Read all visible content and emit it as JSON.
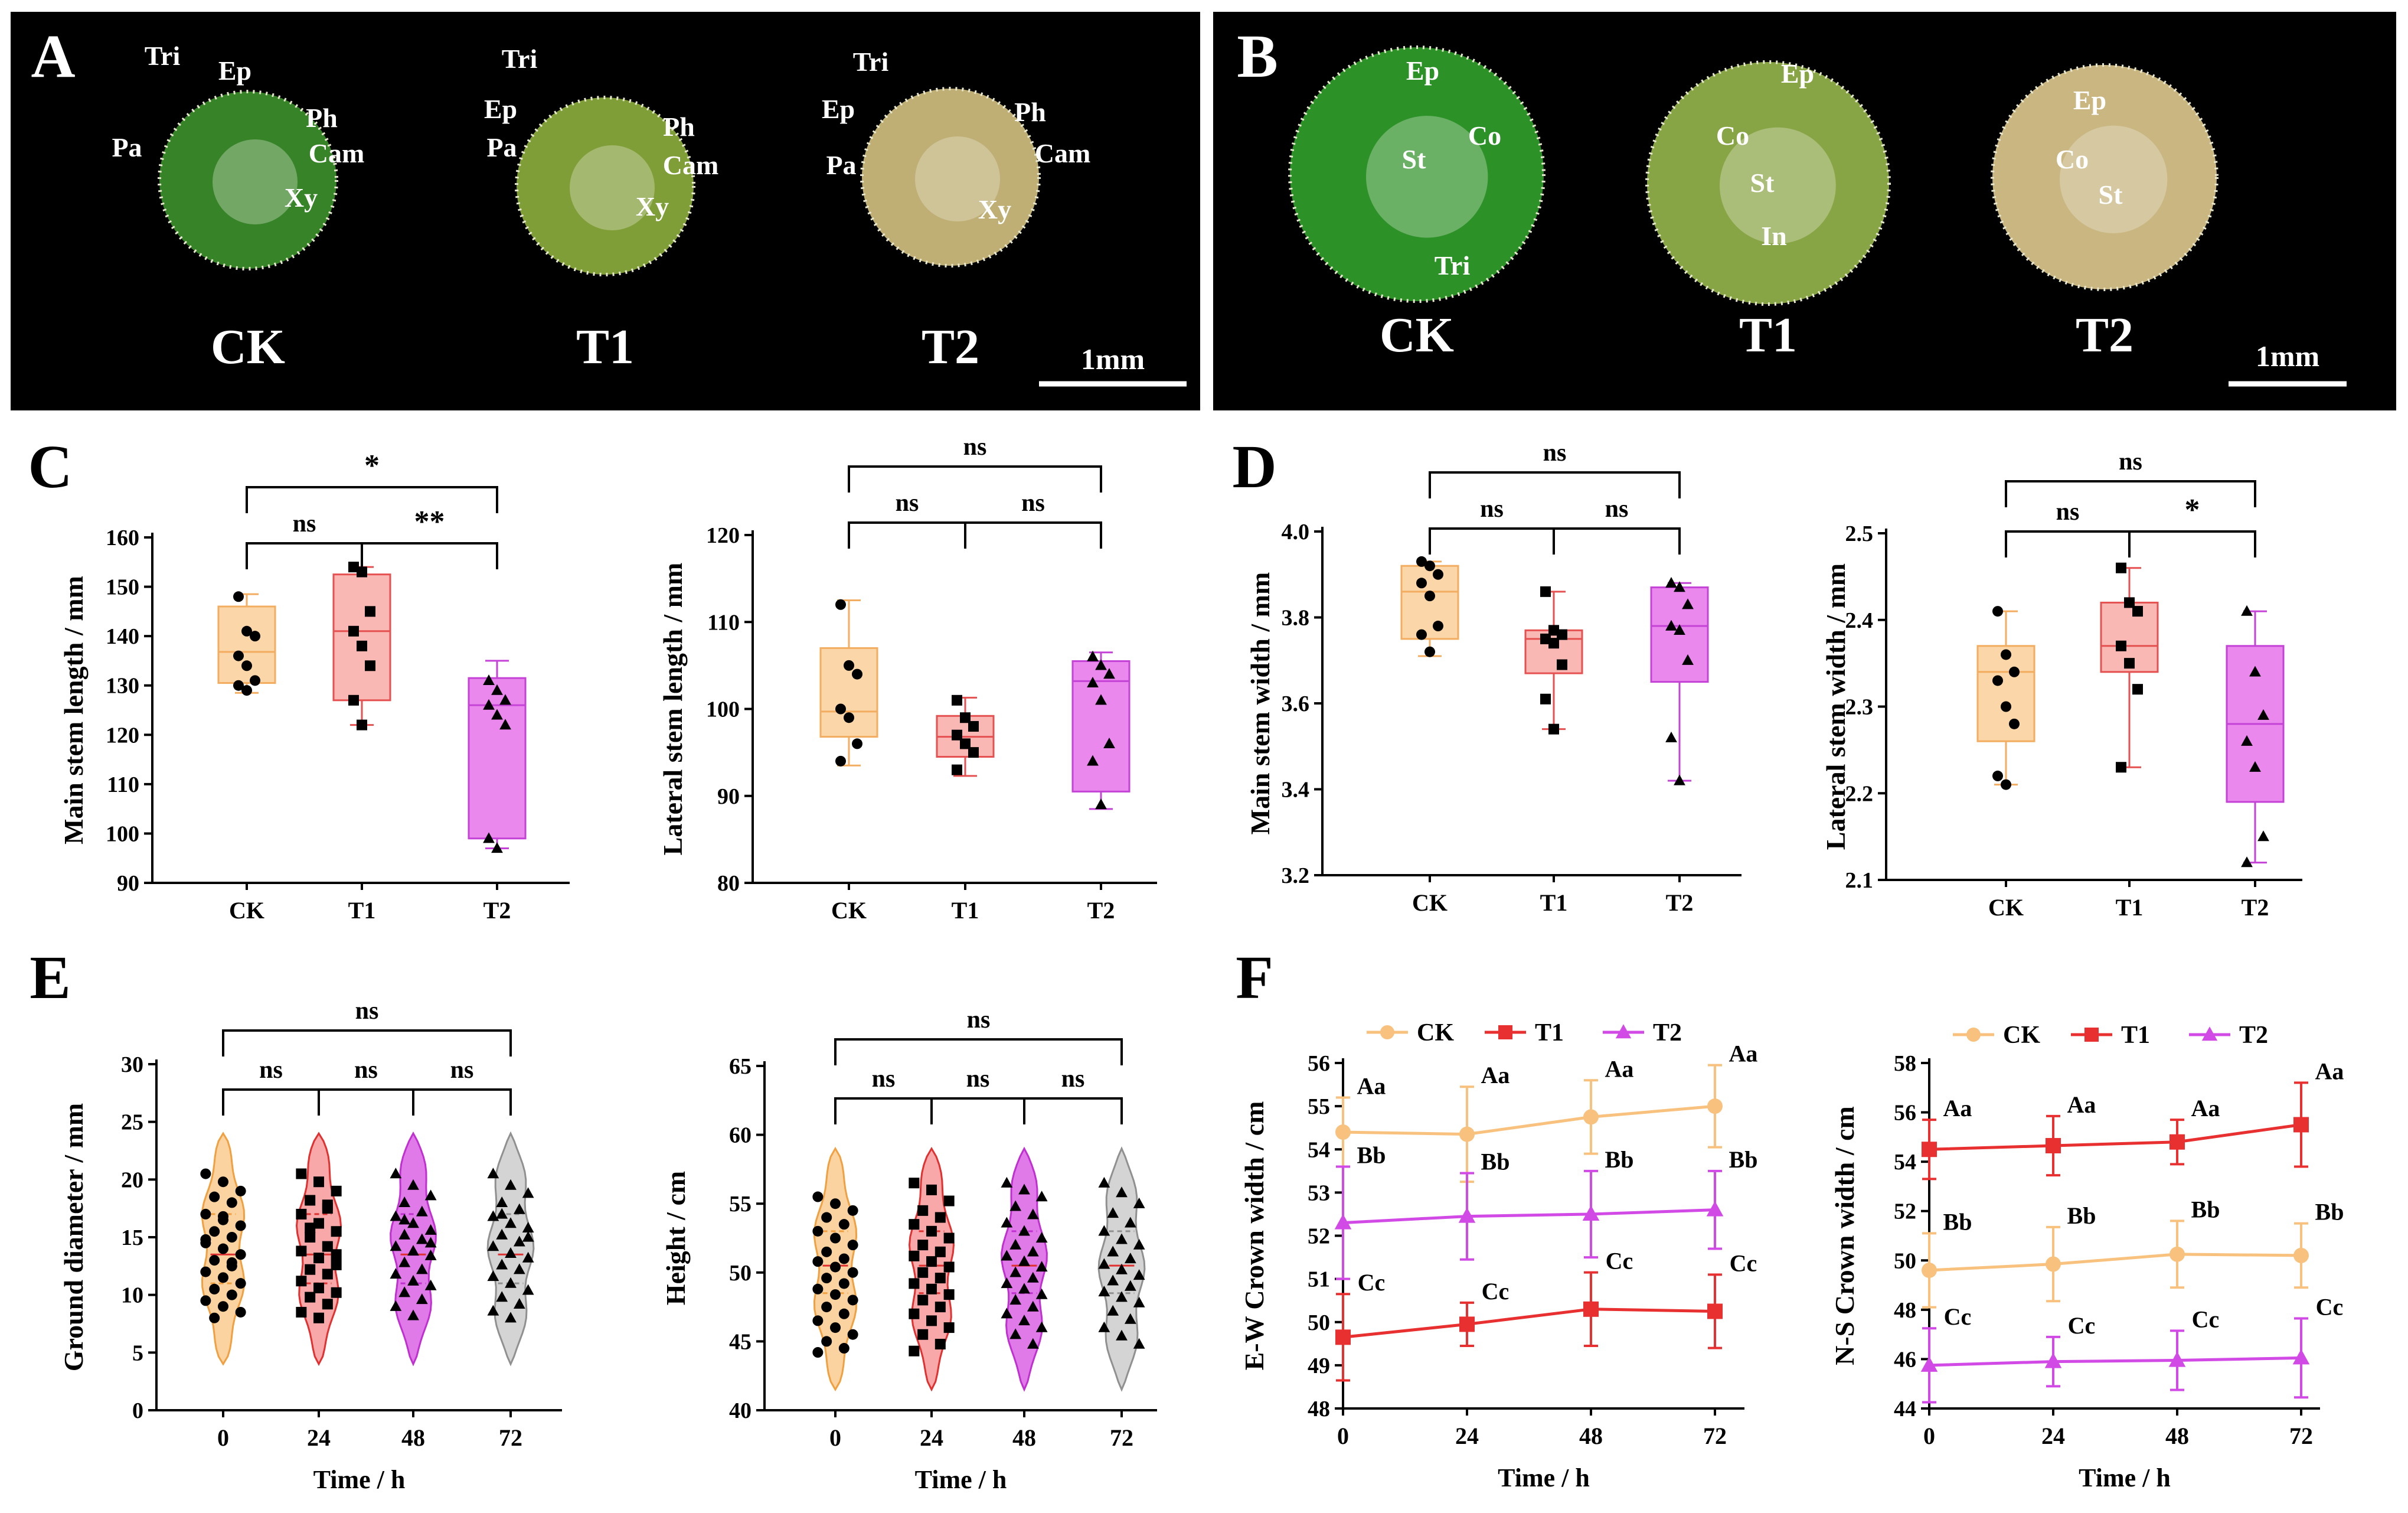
{
  "photo_panels": [
    {
      "letter": "A",
      "scale_label": "1mm",
      "samples": [
        {
          "label": "CK",
          "color": "#3a8a2a",
          "annotations": [
            "Tri",
            "Ep",
            "Ph",
            "Pa",
            "Cam",
            "Xy"
          ]
        },
        {
          "label": "T1",
          "color": "#86a63a",
          "annotations": [
            "Tri",
            "Ep",
            "Ph",
            "Pa",
            "Cam",
            "Xy"
          ]
        },
        {
          "label": "T2",
          "color": "#c9b87a",
          "annotations": [
            "Tri",
            "Ep",
            "Ph",
            "Pa",
            "Cam",
            "Xy"
          ]
        }
      ]
    },
    {
      "letter": "B",
      "scale_label": "1mm",
      "samples": [
        {
          "label": "CK",
          "color": "#2e9a2a",
          "annotations": [
            "Ep",
            "Co",
            "St",
            "Tri"
          ]
        },
        {
          "label": "T1",
          "color": "#8fae4a",
          "annotations": [
            "Ep",
            "Co",
            "St",
            "In"
          ]
        },
        {
          "label": "T2",
          "color": "#d4c088",
          "annotations": [
            "Ep",
            "Co",
            "St"
          ]
        }
      ]
    }
  ],
  "chart_data": [
    {
      "panel": "C",
      "type": "box",
      "ylabel": "Main stem length / mm",
      "ylim": [
        90,
        160
      ],
      "yticks": [
        "90",
        "100",
        "110",
        "120",
        "130",
        "140",
        "150",
        "160"
      ],
      "categories": [
        "CK",
        "T1",
        "T2"
      ],
      "boxes": [
        {
          "min": 128.5,
          "q1": 130.5,
          "median": 136.8,
          "q3": 146,
          "max": 148.5,
          "points": [
            148,
            141,
            140,
            136,
            134,
            131,
            130,
            129
          ]
        },
        {
          "min": 122,
          "q1": 127,
          "median": 141,
          "q3": 152.5,
          "max": 154,
          "points": [
            154,
            153,
            145,
            141,
            138,
            134,
            127,
            122
          ]
        },
        {
          "min": 97,
          "q1": 99,
          "median": 126,
          "q3": 131.5,
          "max": 135,
          "points": [
            131,
            129,
            127,
            126,
            124,
            122,
            99,
            97
          ]
        }
      ],
      "brackets": [
        {
          "from": 0,
          "to": 1,
          "label": "ns",
          "level": 1
        },
        {
          "from": 1,
          "to": 2,
          "label": "**",
          "level": 1
        },
        {
          "from": 0,
          "to": 2,
          "label": "*",
          "level": 2
        }
      ]
    },
    {
      "panel": "",
      "type": "box",
      "ylabel": "Lateral stem length / mm",
      "ylim": [
        80,
        120
      ],
      "yticks": [
        "80",
        "90",
        "100",
        "110",
        "120"
      ],
      "categories": [
        "CK",
        "T1",
        "T2"
      ],
      "boxes": [
        {
          "min": 93.5,
          "q1": 96.8,
          "median": 99.7,
          "q3": 107,
          "max": 112.5,
          "points": [
            112,
            105,
            104,
            100,
            99,
            96,
            94
          ]
        },
        {
          "min": 92.3,
          "q1": 94.5,
          "median": 96.8,
          "q3": 99.2,
          "max": 101.3,
          "points": [
            101,
            99,
            98,
            97,
            96,
            95,
            93
          ]
        },
        {
          "min": 88.5,
          "q1": 90.5,
          "median": 103.2,
          "q3": 105.5,
          "max": 106.5,
          "points": [
            106,
            105,
            104,
            103,
            101,
            96,
            94,
            89
          ]
        }
      ],
      "brackets": [
        {
          "from": 0,
          "to": 1,
          "label": "ns",
          "level": 1
        },
        {
          "from": 1,
          "to": 2,
          "label": "ns",
          "level": 1
        },
        {
          "from": 0,
          "to": 2,
          "label": "ns",
          "level": 2
        }
      ]
    },
    {
      "panel": "D",
      "type": "box",
      "ylabel": "Main stem width / mm",
      "ylim": [
        3.2,
        4.0
      ],
      "yticks": [
        "3.2",
        "3.4",
        "3.6",
        "3.8",
        "4.0"
      ],
      "categories": [
        "CK",
        "T1",
        "T2"
      ],
      "boxes": [
        {
          "min": 3.71,
          "q1": 3.75,
          "median": 3.86,
          "q3": 3.92,
          "max": 3.93,
          "points": [
            3.93,
            3.92,
            3.9,
            3.88,
            3.85,
            3.78,
            3.76,
            3.72
          ]
        },
        {
          "min": 3.54,
          "q1": 3.67,
          "median": 3.75,
          "q3": 3.77,
          "max": 3.86,
          "points": [
            3.86,
            3.77,
            3.76,
            3.75,
            3.74,
            3.69,
            3.61,
            3.54
          ]
        },
        {
          "min": 3.42,
          "q1": 3.65,
          "median": 3.78,
          "q3": 3.87,
          "max": 3.88,
          "points": [
            3.88,
            3.87,
            3.83,
            3.78,
            3.77,
            3.7,
            3.52,
            3.42
          ]
        }
      ],
      "brackets": [
        {
          "from": 0,
          "to": 1,
          "label": "ns",
          "level": 1
        },
        {
          "from": 1,
          "to": 2,
          "label": "ns",
          "level": 1
        },
        {
          "from": 0,
          "to": 2,
          "label": "ns",
          "level": 2
        }
      ]
    },
    {
      "panel": "",
      "type": "box",
      "ylabel": "Lateral stem width / mm",
      "ylim": [
        2.1,
        2.5
      ],
      "yticks": [
        "2.1",
        "2.2",
        "2.3",
        "2.4",
        "2.5"
      ],
      "categories": [
        "CK",
        "T1",
        "T2"
      ],
      "boxes": [
        {
          "min": 2.21,
          "q1": 2.26,
          "median": 2.34,
          "q3": 2.37,
          "max": 2.41,
          "points": [
            2.41,
            2.36,
            2.34,
            2.33,
            2.3,
            2.28,
            2.22,
            2.21
          ]
        },
        {
          "min": 2.23,
          "q1": 2.34,
          "median": 2.37,
          "q3": 2.42,
          "max": 2.46,
          "points": [
            2.46,
            2.42,
            2.41,
            2.37,
            2.35,
            2.32,
            2.23
          ]
        },
        {
          "min": 2.12,
          "q1": 2.19,
          "median": 2.28,
          "q3": 2.37,
          "max": 2.41,
          "points": [
            2.41,
            2.34,
            2.29,
            2.26,
            2.23,
            2.15,
            2.12
          ]
        }
      ],
      "brackets": [
        {
          "from": 0,
          "to": 1,
          "label": "ns",
          "level": 1
        },
        {
          "from": 1,
          "to": 2,
          "label": "*",
          "level": 1
        },
        {
          "from": 0,
          "to": 2,
          "label": "ns",
          "level": 2
        }
      ]
    },
    {
      "panel": "E",
      "type": "violin",
      "ylabel": "Ground diameter / mm",
      "xlabel": "Time / h",
      "ylim": [
        0,
        30
      ],
      "yticks": [
        "0",
        "5",
        "10",
        "15",
        "20",
        "25",
        "30"
      ],
      "categories": [
        "0",
        "24",
        "48",
        "72"
      ],
      "colors": [
        "#fbd3a0",
        "#f8a8a8",
        "#e07ae8",
        "#d4d4d4"
      ],
      "strokes": [
        "#f0a040",
        "#e03030",
        "#c030d0",
        "#909090"
      ],
      "range": [
        4,
        24
      ],
      "quartiles": [
        11,
        13.5,
        17
      ],
      "points": [
        [
          20.5,
          19.8,
          19,
          18.5,
          18,
          17,
          16.5,
          16,
          15.5,
          15,
          14.5,
          14,
          13.5,
          13,
          12.5,
          12,
          11.5,
          11,
          10.5,
          10,
          9.5,
          9,
          8.5,
          8,
          12.8,
          14.8,
          16.8
        ],
        [
          20.5,
          19.8,
          19,
          18.2,
          17.5,
          17,
          16.2,
          15.5,
          15,
          14.2,
          13.8,
          13.2,
          12.6,
          12.2,
          11.8,
          11.2,
          10.6,
          10.2,
          9.8,
          9.2,
          8.5,
          8,
          13.5,
          15.8,
          17.8
        ],
        [
          20.5,
          19.5,
          18.6,
          18,
          17.2,
          16.8,
          16.2,
          15.6,
          15.2,
          14.8,
          14.2,
          13.8,
          13.4,
          12.8,
          12.2,
          11.8,
          11.2,
          10.8,
          10.2,
          9.6,
          9,
          8.2,
          14.5,
          16.5
        ],
        [
          20.5,
          19.5,
          18.8,
          18,
          17.4,
          16.8,
          16.2,
          15.8,
          15.2,
          14.6,
          14.2,
          13.6,
          13.2,
          12.6,
          12.2,
          11.6,
          11,
          10.4,
          9.8,
          9.2,
          8.6,
          8,
          15,
          17
        ]
      ],
      "brackets": [
        {
          "from": 0,
          "to": 1,
          "label": "ns",
          "level": 1
        },
        {
          "from": 1,
          "to": 2,
          "label": "ns",
          "level": 1
        },
        {
          "from": 2,
          "to": 3,
          "label": "ns",
          "level": 1
        },
        {
          "from": 0,
          "to": 3,
          "label": "ns",
          "level": 2
        }
      ]
    },
    {
      "panel": "",
      "type": "violin",
      "ylabel": "Height / cm",
      "xlabel": "Time / h",
      "ylim": [
        40,
        65
      ],
      "yticks": [
        "40",
        "45",
        "50",
        "55",
        "60",
        "65"
      ],
      "categories": [
        "0",
        "24",
        "48",
        "72"
      ],
      "colors": [
        "#fbd3a0",
        "#f8a8a8",
        "#e07ae8",
        "#d4d4d4"
      ],
      "strokes": [
        "#f0a040",
        "#e03030",
        "#c030d0",
        "#909090"
      ],
      "range": [
        41.5,
        59
      ],
      "quartiles": [
        48.5,
        50.5,
        53
      ],
      "points": [
        [
          55.5,
          55,
          54.5,
          54,
          53.5,
          53,
          52.5,
          52,
          51.5,
          51,
          50.8,
          50.4,
          50,
          49.6,
          49.2,
          48.8,
          48.4,
          48,
          47.5,
          47,
          46.5,
          46,
          45.5,
          45,
          44.5,
          44.2
        ],
        [
          56.5,
          56,
          55.2,
          54.5,
          54,
          53.5,
          53,
          52.5,
          52,
          51.5,
          51.2,
          50.8,
          50.4,
          50,
          49.6,
          49.2,
          48.8,
          48.4,
          48,
          47.5,
          47,
          46.5,
          46,
          45.5,
          44.8,
          44.3
        ],
        [
          56.5,
          56,
          55.5,
          54.8,
          54.2,
          53.6,
          53,
          52.5,
          52,
          51.5,
          51.2,
          50.8,
          50.4,
          50,
          49.6,
          49.2,
          48.8,
          48.4,
          48,
          47.5,
          47,
          46.5,
          46,
          45.5,
          44.8
        ],
        [
          56.5,
          55.8,
          55,
          54.3,
          53.6,
          53,
          52.4,
          52,
          51.5,
          51,
          50.6,
          50.2,
          49.8,
          49.4,
          49,
          48.6,
          48.2,
          47.8,
          47.2,
          46.6,
          46,
          45.4,
          44.8
        ]
      ],
      "brackets": [
        {
          "from": 0,
          "to": 1,
          "label": "ns",
          "level": 1
        },
        {
          "from": 1,
          "to": 2,
          "label": "ns",
          "level": 1
        },
        {
          "from": 2,
          "to": 3,
          "label": "ns",
          "level": 1
        },
        {
          "from": 0,
          "to": 3,
          "label": "ns",
          "level": 2
        }
      ]
    },
    {
      "panel": "F",
      "type": "line",
      "ylabel": "E-W Crown width / cm",
      "xlabel": "Time / h",
      "ylim": [
        48,
        56
      ],
      "yticks": [
        "48",
        "49",
        "50",
        "51",
        "52",
        "53",
        "54",
        "55",
        "56"
      ],
      "x": [
        0,
        24,
        48,
        72
      ],
      "xticks": [
        "0",
        "24",
        "48",
        "72"
      ],
      "series": [
        {
          "name": "CK",
          "color": "#f8c27e",
          "marker": "circle",
          "values": [
            54.4,
            54.35,
            54.75,
            55.0
          ],
          "errors": [
            0.8,
            1.1,
            0.85,
            0.95
          ],
          "labels": [
            "Aa",
            "Aa",
            "Aa",
            "Aa"
          ]
        },
        {
          "name": "T1",
          "color": "#e83030",
          "marker": "square",
          "values": [
            49.65,
            49.95,
            50.3,
            50.25
          ],
          "errors": [
            1.0,
            0.5,
            0.85,
            0.85
          ],
          "labels": [
            "Cc",
            "Cc",
            "Cc",
            "Cc"
          ]
        },
        {
          "name": "T2",
          "color": "#d24ae6",
          "marker": "triangle",
          "values": [
            52.3,
            52.45,
            52.5,
            52.6
          ],
          "errors": [
            1.3,
            1.0,
            1.0,
            0.9
          ],
          "labels": [
            "Bb",
            "Bb",
            "Bb",
            "Bb"
          ]
        }
      ]
    },
    {
      "panel": "",
      "type": "line",
      "ylabel": "N-S Crown width / cm",
      "xlabel": "Time / h",
      "ylim": [
        44,
        58
      ],
      "yticks": [
        "44",
        "46",
        "48",
        "50",
        "52",
        "54",
        "56",
        "58"
      ],
      "x": [
        0,
        24,
        48,
        72
      ],
      "xticks": [
        "0",
        "24",
        "48",
        "72"
      ],
      "series": [
        {
          "name": "CK",
          "color": "#f8c27e",
          "marker": "circle",
          "values": [
            49.6,
            49.85,
            50.25,
            50.2
          ],
          "errors": [
            1.5,
            1.5,
            1.35,
            1.3
          ],
          "labels": [
            "Bb",
            "Bb",
            "Bb",
            "Bb"
          ]
        },
        {
          "name": "T1",
          "color": "#e83030",
          "marker": "square",
          "values": [
            54.5,
            54.65,
            54.8,
            55.5
          ],
          "errors": [
            1.2,
            1.2,
            0.9,
            1.7
          ],
          "labels": [
            "Aa",
            "Aa",
            "Aa",
            "Aa"
          ]
        },
        {
          "name": "T2",
          "color": "#d24ae6",
          "marker": "triangle",
          "values": [
            45.75,
            45.9,
            45.95,
            46.05
          ],
          "errors": [
            1.5,
            1.0,
            1.2,
            1.6
          ],
          "labels": [
            "Cc",
            "Cc",
            "Cc",
            "Cc"
          ]
        }
      ]
    }
  ]
}
